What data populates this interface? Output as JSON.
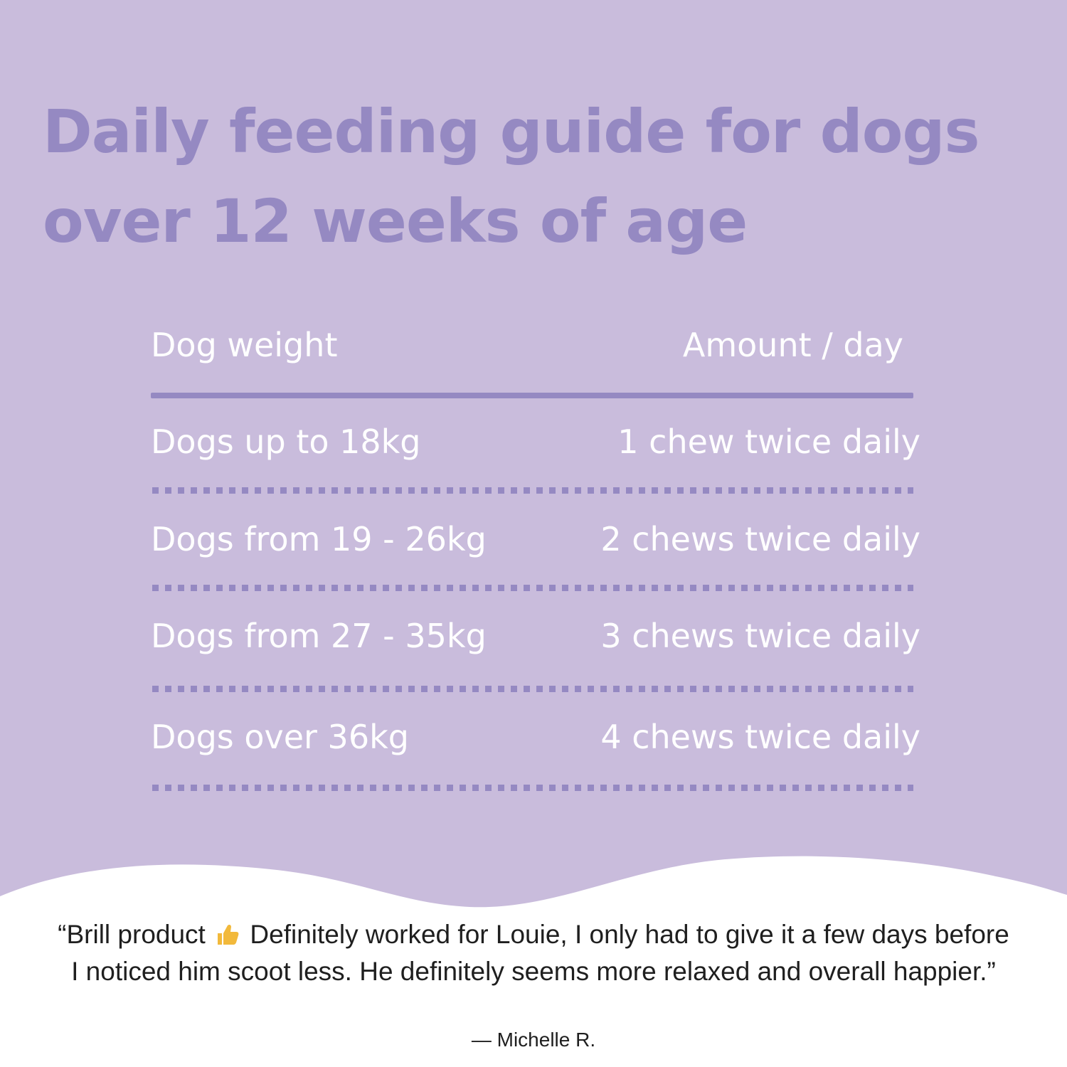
{
  "colors": {
    "background": "#c9bcdc",
    "accent": "#9589c2",
    "table_text": "#ffffff",
    "quote_area": "#ffffff",
    "quote_text": "#1f1f1f",
    "thumb": "#f2b93b"
  },
  "title": {
    "line1": "Daily feeding guide for dogs",
    "line2": "over 12 weeks of age"
  },
  "table": {
    "header": {
      "weight": "Dog weight",
      "amount": "Amount / day"
    },
    "rows": [
      {
        "weight": "Dogs up to 18kg",
        "amount": "1 chew twice daily"
      },
      {
        "weight": "Dogs from 19 - 26kg",
        "amount": "2 chews twice daily"
      },
      {
        "weight": "Dogs from 27 - 35kg",
        "amount": "3 chews twice daily"
      },
      {
        "weight": "Dogs over 36kg",
        "amount": "4 chews twice daily"
      }
    ]
  },
  "testimonial": {
    "before_icon": "“Brill product",
    "icon": "thumbs-up-icon",
    "after_icon": "Definitely worked for Louie, I only had to give it a few days before I noticed him scoot less. He definitely seems more relaxed and overall happier.”",
    "author": "— Michelle R."
  }
}
